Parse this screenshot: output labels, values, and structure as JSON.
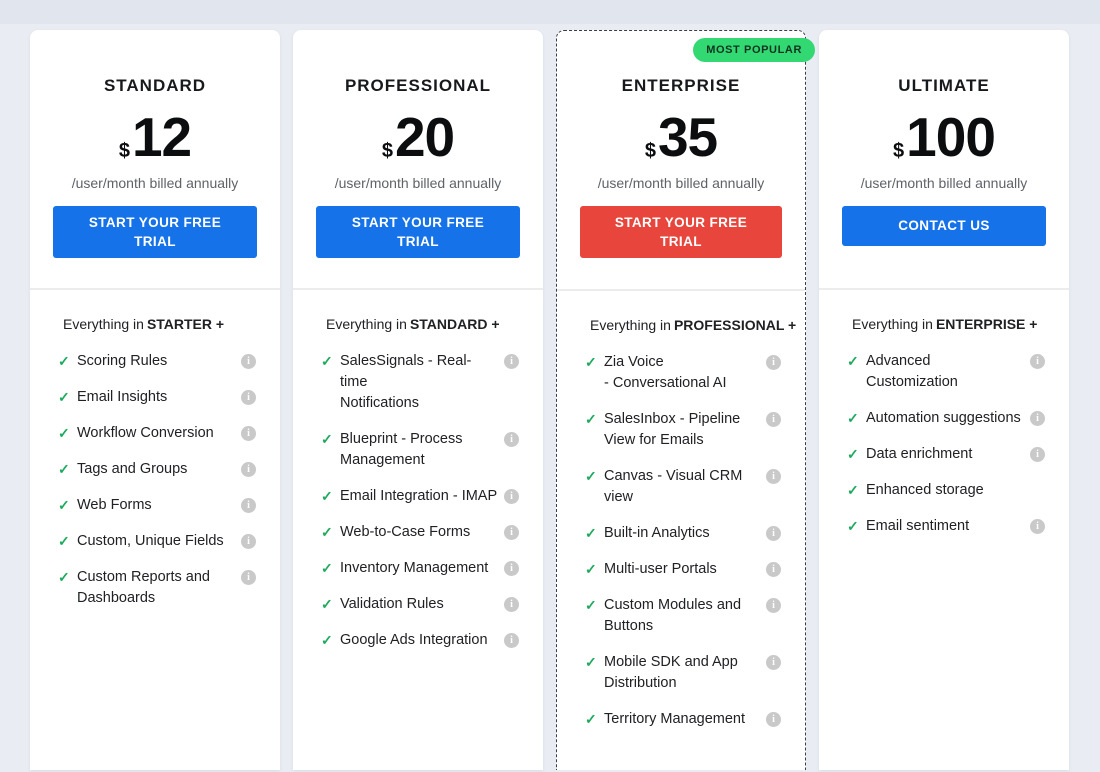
{
  "badge": {
    "label": "MOST POPULAR",
    "bg_color": "#32d973",
    "text_color": "#12331f"
  },
  "colors": {
    "background": "#e9edf3",
    "primary_button": "#1672e8",
    "featured_button": "#e8463d",
    "check": "#1fa95e",
    "info_icon": "#c9c9c9"
  },
  "plans": [
    {
      "name": "STANDARD",
      "currency": "$",
      "price": "12",
      "billing": "/user/month billed annually",
      "cta": {
        "label": "START YOUR FREE TRIAL",
        "color": "#1672e8"
      },
      "intro_prefix": "Everything in",
      "intro_bold": "STARTER +",
      "features": [
        {
          "label": "Scoring Rules",
          "info": true
        },
        {
          "label": "Email Insights",
          "info": true
        },
        {
          "label": "Workflow Conversion",
          "info": true
        },
        {
          "label": "Tags and Groups",
          "info": true
        },
        {
          "label": "Web Forms",
          "info": true
        },
        {
          "label": "Custom, Unique Fields",
          "info": true
        },
        {
          "label": "Custom Reports and\nDashboards",
          "info": true
        }
      ]
    },
    {
      "name": "PROFESSIONAL",
      "currency": "$",
      "price": "20",
      "billing": "/user/month billed annually",
      "cta": {
        "label": "START YOUR FREE TRIAL",
        "color": "#1672e8"
      },
      "intro_prefix": "Everything in",
      "intro_bold": "STANDARD +",
      "features": [
        {
          "label": "SalesSignals - Real-time\nNotifications",
          "info": true
        },
        {
          "label": "Blueprint - Process\nManagement",
          "info": true
        },
        {
          "label": "Email Integration - IMAP",
          "info": true
        },
        {
          "label": "Web-to-Case Forms",
          "info": true
        },
        {
          "label": "Inventory Management",
          "info": true
        },
        {
          "label": "Validation Rules",
          "info": true
        },
        {
          "label": "Google Ads Integration",
          "info": true
        }
      ]
    },
    {
      "name": "ENTERPRISE",
      "currency": "$",
      "price": "35",
      "billing": "/user/month billed annually",
      "featured": true,
      "cta": {
        "label": "START YOUR FREE TRIAL",
        "color": "#e8463d"
      },
      "intro_prefix": "Everything in",
      "intro_bold": "PROFESSIONAL +",
      "features": [
        {
          "label": "Zia Voice\n- Conversational AI",
          "info": true
        },
        {
          "label": "SalesInbox - Pipeline\nView for Emails",
          "info": true
        },
        {
          "label": "Canvas - Visual CRM\nview",
          "info": true
        },
        {
          "label": "Built-in Analytics",
          "info": true
        },
        {
          "label": "Multi-user Portals",
          "info": true
        },
        {
          "label": "Custom Modules and\nButtons",
          "info": true
        },
        {
          "label": "Mobile SDK and App\nDistribution",
          "info": true
        },
        {
          "label": "Territory Management",
          "info": true
        }
      ]
    },
    {
      "name": "ULTIMATE",
      "currency": "$",
      "price": "100",
      "billing": "/user/month billed annually",
      "cta": {
        "label": "CONTACT US",
        "color": "#1672e8"
      },
      "intro_prefix": "Everything in",
      "intro_bold": "ENTERPRISE +",
      "features": [
        {
          "label": "Advanced\nCustomization",
          "info": true
        },
        {
          "label": "Automation suggestions",
          "info": true
        },
        {
          "label": "Data enrichment",
          "info": true
        },
        {
          "label": "Enhanced storage",
          "info": false
        },
        {
          "label": "Email sentiment",
          "info": true
        }
      ]
    }
  ]
}
